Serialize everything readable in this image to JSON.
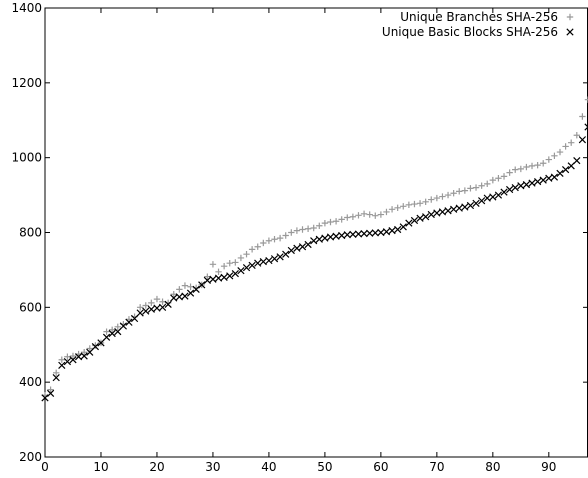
{
  "chart_data": {
    "type": "scatter",
    "title": "",
    "xlabel": "",
    "ylabel": "",
    "xlim": [
      0,
      97
    ],
    "ylim": [
      200,
      1400
    ],
    "x_ticks": [
      0,
      10,
      20,
      30,
      40,
      50,
      60,
      70,
      80,
      90
    ],
    "y_ticks": [
      200,
      400,
      600,
      800,
      1000,
      1200,
      1400
    ],
    "grid": false,
    "legend": {
      "position": "top-right"
    },
    "x": [
      0,
      1,
      2,
      3,
      4,
      5,
      6,
      7,
      8,
      9,
      10,
      11,
      12,
      13,
      14,
      15,
      16,
      17,
      18,
      19,
      20,
      21,
      22,
      23,
      24,
      25,
      26,
      27,
      28,
      29,
      30,
      31,
      32,
      33,
      34,
      35,
      36,
      37,
      38,
      39,
      40,
      41,
      42,
      43,
      44,
      45,
      46,
      47,
      48,
      49,
      50,
      51,
      52,
      53,
      54,
      55,
      56,
      57,
      58,
      59,
      60,
      61,
      62,
      63,
      64,
      65,
      66,
      67,
      68,
      69,
      70,
      71,
      72,
      73,
      74,
      75,
      76,
      77,
      78,
      79,
      80,
      81,
      82,
      83,
      84,
      85,
      86,
      87,
      88,
      89,
      90,
      91,
      92,
      93,
      94,
      95,
      96,
      97
    ],
    "series": [
      {
        "name": "Unique Branches SHA-256",
        "marker": "+",
        "color": "#999999",
        "values": [
          365,
          380,
          425,
          460,
          468,
          470,
          475,
          480,
          490,
          498,
          505,
          535,
          540,
          548,
          555,
          568,
          575,
          600,
          605,
          612,
          622,
          615,
          612,
          635,
          648,
          658,
          655,
          652,
          660,
          682,
          715,
          695,
          710,
          718,
          720,
          732,
          742,
          755,
          762,
          772,
          778,
          782,
          785,
          792,
          800,
          805,
          808,
          810,
          812,
          818,
          825,
          828,
          830,
          835,
          840,
          842,
          846,
          850,
          848,
          845,
          848,
          855,
          862,
          866,
          870,
          874,
          876,
          878,
          882,
          888,
          892,
          896,
          900,
          905,
          910,
          912,
          918,
          920,
          925,
          930,
          940,
          945,
          950,
          960,
          968,
          970,
          975,
          978,
          980,
          985,
          995,
          1005,
          1015,
          1030,
          1040,
          1060,
          1110,
          1155
        ]
      },
      {
        "name": "Unique Basic Blocks SHA-256",
        "marker": "x",
        "color": "#000000",
        "values": [
          358,
          370,
          412,
          445,
          455,
          460,
          468,
          470,
          480,
          495,
          505,
          520,
          530,
          535,
          550,
          560,
          570,
          585,
          590,
          595,
          598,
          600,
          608,
          625,
          628,
          630,
          638,
          648,
          660,
          672,
          675,
          678,
          680,
          684,
          690,
          698,
          706,
          712,
          718,
          722,
          725,
          730,
          735,
          742,
          752,
          758,
          762,
          768,
          778,
          782,
          785,
          788,
          790,
          792,
          794,
          795,
          796,
          797,
          798,
          799,
          800,
          802,
          805,
          808,
          815,
          825,
          832,
          838,
          842,
          848,
          852,
          855,
          858,
          862,
          865,
          868,
          872,
          878,
          885,
          892,
          895,
          900,
          908,
          915,
          920,
          925,
          928,
          932,
          936,
          940,
          945,
          948,
          958,
          968,
          978,
          992,
          1048,
          1082
        ]
      }
    ]
  }
}
